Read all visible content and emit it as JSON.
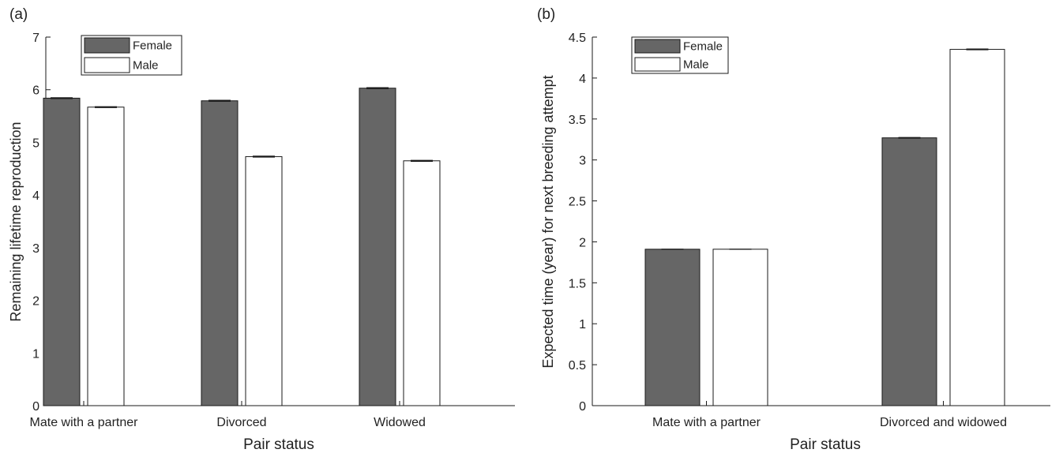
{
  "colors": {
    "female": "#666666",
    "male": "#ffffff",
    "stroke": "#1a1a1a"
  },
  "chart_data": [
    {
      "type": "bar",
      "panel_label": "(a)",
      "categories": [
        "Mate with a partner",
        "Divorced",
        "Widowed"
      ],
      "series": [
        {
          "name": "Female",
          "values": [
            5.84,
            5.79,
            6.03
          ],
          "errors": [
            0.01,
            0.01,
            0.01
          ]
        },
        {
          "name": "Male",
          "values": [
            5.67,
            4.73,
            4.65
          ],
          "errors": [
            0.01,
            0.01,
            0.01
          ]
        }
      ],
      "xlabel": "Pair status",
      "ylabel": "Remaining lifetime reproduction",
      "ylim": [
        0,
        7
      ],
      "yticks": [
        "0",
        "1",
        "2",
        "3",
        "4",
        "5",
        "6",
        "7"
      ],
      "legend": "top-left",
      "grid": false
    },
    {
      "type": "bar",
      "panel_label": "(b)",
      "categories": [
        "Mate with a partner",
        "Divorced and widowed"
      ],
      "series": [
        {
          "name": "Female",
          "values": [
            1.91,
            3.27
          ],
          "errors": [
            0.0,
            0.005
          ]
        },
        {
          "name": "Male",
          "values": [
            1.91,
            4.35
          ],
          "errors": [
            0.0,
            0.005
          ]
        }
      ],
      "xlabel": "Pair status",
      "ylabel": "Expected time (year) for next breeding attempt",
      "ylim": [
        0,
        4.5
      ],
      "yticks": [
        "0",
        "0.5",
        "1",
        "1.5",
        "2",
        "2.5",
        "3",
        "3.5",
        "4",
        "4.5"
      ],
      "legend": "top-left",
      "grid": false
    }
  ]
}
